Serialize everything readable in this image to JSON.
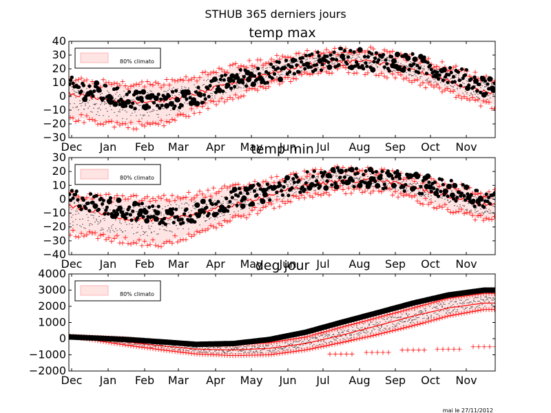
{
  "figure": {
    "suptitle": "STHUB 365 derniers jours",
    "footer": "mai le 27/11/2012"
  },
  "chart_data": [
    {
      "type": "scatter",
      "title": "temp max",
      "xlabel": "",
      "ylabel": "",
      "ylim": [
        -30,
        40
      ],
      "yticks": [
        -30,
        -20,
        -10,
        0,
        10,
        20,
        30,
        40
      ],
      "xticks": [
        "Dec",
        "Jan",
        "Feb",
        "Mar",
        "Apr",
        "May",
        "Jun",
        "Jul",
        "Aug",
        "Sep",
        "Oct",
        "Nov"
      ],
      "legend": {
        "label": "80% climato",
        "placement": "top-left"
      },
      "series": [
        {
          "kind": "observed",
          "color": "#000000",
          "months": [
            "Dec",
            "Jan",
            "Feb",
            "Mar",
            "Apr",
            "May",
            "Jun",
            "Jul",
            "Aug",
            "Sep",
            "Oct",
            "Nov"
          ],
          "values": [
            4,
            -2,
            -4,
            0,
            12,
            17,
            24,
            28,
            26,
            24,
            17,
            8
          ]
        },
        {
          "kind": "climate-median",
          "color": "#ff0000",
          "months": [
            "Dec",
            "Jan",
            "Feb",
            "Mar",
            "Apr",
            "May",
            "Jun",
            "Jul",
            "Aug",
            "Sep",
            "Oct",
            "Nov"
          ],
          "values": [
            0,
            -4,
            -3,
            2,
            10,
            17,
            23,
            26,
            25,
            19,
            11,
            3
          ]
        },
        {
          "kind": "climate-upper",
          "color": "#ff0000",
          "months": [
            "Dec",
            "Jan",
            "Feb",
            "Mar",
            "Apr",
            "May",
            "Jun",
            "Jul",
            "Aug",
            "Sep",
            "Oct",
            "Nov"
          ],
          "values": [
            10,
            8,
            9,
            14,
            21,
            26,
            31,
            33,
            33,
            28,
            21,
            13
          ]
        },
        {
          "kind": "climate-lower",
          "color": "#ff0000",
          "months": [
            "Dec",
            "Jan",
            "Feb",
            "Mar",
            "Apr",
            "May",
            "Jun",
            "Jul",
            "Aug",
            "Sep",
            "Oct",
            "Nov"
          ],
          "values": [
            -17,
            -21,
            -20,
            -10,
            1,
            8,
            16,
            20,
            18,
            12,
            3,
            -6
          ]
        }
      ]
    },
    {
      "type": "scatter",
      "title": "temp min",
      "xlabel": "",
      "ylabel": "",
      "ylim": [
        -40,
        30
      ],
      "yticks": [
        -40,
        -30,
        -20,
        -10,
        0,
        10,
        20,
        30
      ],
      "xticks": [
        "Dec",
        "Jan",
        "Feb",
        "Mar",
        "Apr",
        "May",
        "Jun",
        "Jul",
        "Aug",
        "Sep",
        "Oct",
        "Nov"
      ],
      "legend": {
        "label": "80% climato",
        "placement": "top-left"
      },
      "series": [
        {
          "kind": "observed",
          "color": "#000000",
          "months": [
            "Dec",
            "Jan",
            "Feb",
            "Mar",
            "Apr",
            "May",
            "Jun",
            "Jul",
            "Aug",
            "Sep",
            "Oct",
            "Nov"
          ],
          "values": [
            -2,
            -8,
            -12,
            -10,
            0,
            6,
            13,
            16,
            15,
            12,
            7,
            0
          ]
        },
        {
          "kind": "climate-median",
          "color": "#ff0000",
          "months": [
            "Dec",
            "Jan",
            "Feb",
            "Mar",
            "Apr",
            "May",
            "Jun",
            "Jul",
            "Aug",
            "Sep",
            "Oct",
            "Nov"
          ],
          "values": [
            -8,
            -14,
            -15,
            -10,
            -4,
            3,
            10,
            13,
            14,
            9,
            2,
            -4
          ]
        },
        {
          "kind": "climate-upper",
          "color": "#ff0000",
          "months": [
            "Dec",
            "Jan",
            "Feb",
            "Mar",
            "Apr",
            "May",
            "Jun",
            "Jul",
            "Aug",
            "Sep",
            "Oct",
            "Nov"
          ],
          "values": [
            2,
            0,
            0,
            3,
            8,
            13,
            18,
            21,
            20,
            16,
            10,
            4
          ]
        },
        {
          "kind": "climate-lower",
          "color": "#ff0000",
          "months": [
            "Dec",
            "Jan",
            "Feb",
            "Mar",
            "Apr",
            "May",
            "Jun",
            "Jul",
            "Aug",
            "Sep",
            "Oct",
            "Nov"
          ],
          "values": [
            -26,
            -30,
            -32,
            -24,
            -14,
            -5,
            3,
            7,
            7,
            1,
            -7,
            -15
          ]
        }
      ]
    },
    {
      "type": "scatter",
      "title": "deg jour",
      "xlabel": "",
      "ylabel": "",
      "ylim": [
        -2000,
        4000
      ],
      "yticks": [
        -2000,
        -1000,
        0,
        1000,
        2000,
        3000,
        4000
      ],
      "xticks": [
        "Dec",
        "Jan",
        "Feb",
        "Mar",
        "Apr",
        "May",
        "Jun",
        "Jul",
        "Aug",
        "Sep",
        "Oct",
        "Nov"
      ],
      "legend": {
        "label": "80% climato",
        "placement": "top-left"
      },
      "series": [
        {
          "kind": "observed",
          "color": "#000000",
          "months": [
            "Dec",
            "Jan",
            "Feb",
            "Mar",
            "Apr",
            "May",
            "Jun",
            "Jul",
            "Aug",
            "Sep",
            "Oct",
            "Nov"
          ],
          "values": [
            50,
            -50,
            -200,
            -350,
            -300,
            -50,
            400,
            1000,
            1600,
            2200,
            2700,
            3000
          ]
        },
        {
          "kind": "climate-median",
          "color": "#ff0000",
          "months": [
            "Dec",
            "Jan",
            "Feb",
            "Mar",
            "Apr",
            "May",
            "Jun",
            "Jul",
            "Aug",
            "Sep",
            "Oct",
            "Nov"
          ],
          "values": [
            0,
            -200,
            -450,
            -650,
            -700,
            -600,
            -300,
            200,
            800,
            1400,
            1900,
            2200
          ]
        },
        {
          "kind": "climate-upper",
          "color": "#ff0000",
          "months": [
            "Dec",
            "Jan",
            "Feb",
            "Mar",
            "Apr",
            "May",
            "Jun",
            "Jul",
            "Aug",
            "Sep",
            "Oct",
            "Nov"
          ],
          "values": [
            100,
            0,
            -200,
            -350,
            -400,
            -250,
            100,
            700,
            1300,
            1900,
            2500,
            2800
          ]
        },
        {
          "kind": "climate-lower",
          "color": "#ff0000",
          "months": [
            "Dec",
            "Jan",
            "Feb",
            "Mar",
            "Apr",
            "May",
            "Jun",
            "Jul",
            "Aug",
            "Sep",
            "Oct",
            "Nov"
          ],
          "values": [
            -50,
            -400,
            -700,
            -950,
            -1050,
            -1000,
            -700,
            -250,
            250,
            800,
            1400,
            1800
          ]
        },
        {
          "kind": "outliers",
          "color": "#ff0000",
          "months": [
            "Jul",
            "Aug",
            "Sep",
            "Oct",
            "Nov"
          ],
          "values": [
            -950,
            -850,
            -700,
            -650,
            -500
          ]
        }
      ]
    }
  ]
}
